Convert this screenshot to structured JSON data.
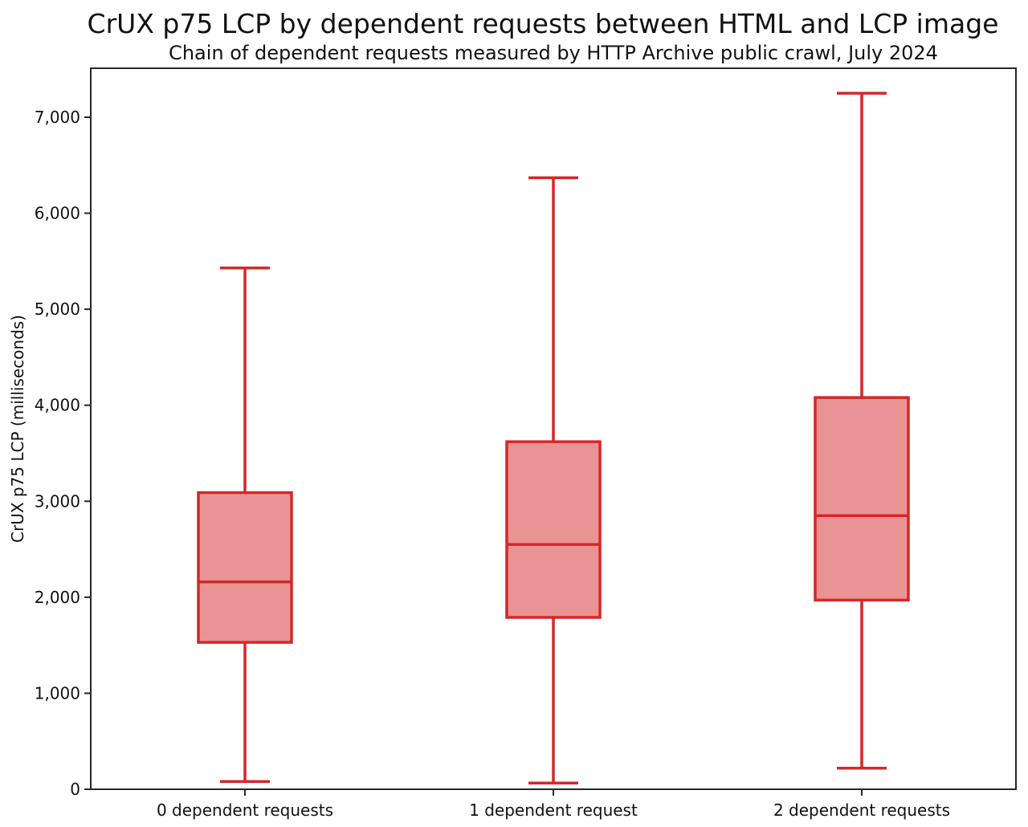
{
  "chart_data": {
    "type": "boxplot",
    "title": "CrUX p75 LCP by dependent requests between HTML and LCP image",
    "subtitle": "Chain of dependent requests measured by HTTP Archive public crawl, July 2024",
    "ylabel": "CrUX p75 LCP (milliseconds)",
    "xlabel": "",
    "categories": [
      "0 dependent requests",
      "1 dependent request",
      "2 dependent requests"
    ],
    "series": [
      {
        "category": "0 dependent requests",
        "whisker_low": 80,
        "q1": 1530,
        "median": 2160,
        "q3": 3090,
        "whisker_high": 5430
      },
      {
        "category": "1 dependent request",
        "whisker_low": 65,
        "q1": 1790,
        "median": 2550,
        "q3": 3620,
        "whisker_high": 6370
      },
      {
        "category": "2 dependent requests",
        "whisker_low": 220,
        "q1": 1970,
        "median": 2850,
        "q3": 4080,
        "whisker_high": 7250
      }
    ],
    "unit": "milliseconds",
    "ylim": [
      0,
      7510
    ],
    "yticks": [
      0,
      1000,
      2000,
      3000,
      4000,
      5000,
      6000,
      7000
    ],
    "ytick_labels": [
      "0",
      "1,000",
      "2,000",
      "3,000",
      "4,000",
      "5,000",
      "6,000",
      "7,000"
    ],
    "grid": false,
    "legend": null,
    "colors": {
      "box_stroke": "#d62728",
      "box_fill": "#ea9394",
      "median": "#d62728",
      "whisker": "#d62728",
      "spine": "#262626",
      "text": "#111111"
    }
  }
}
